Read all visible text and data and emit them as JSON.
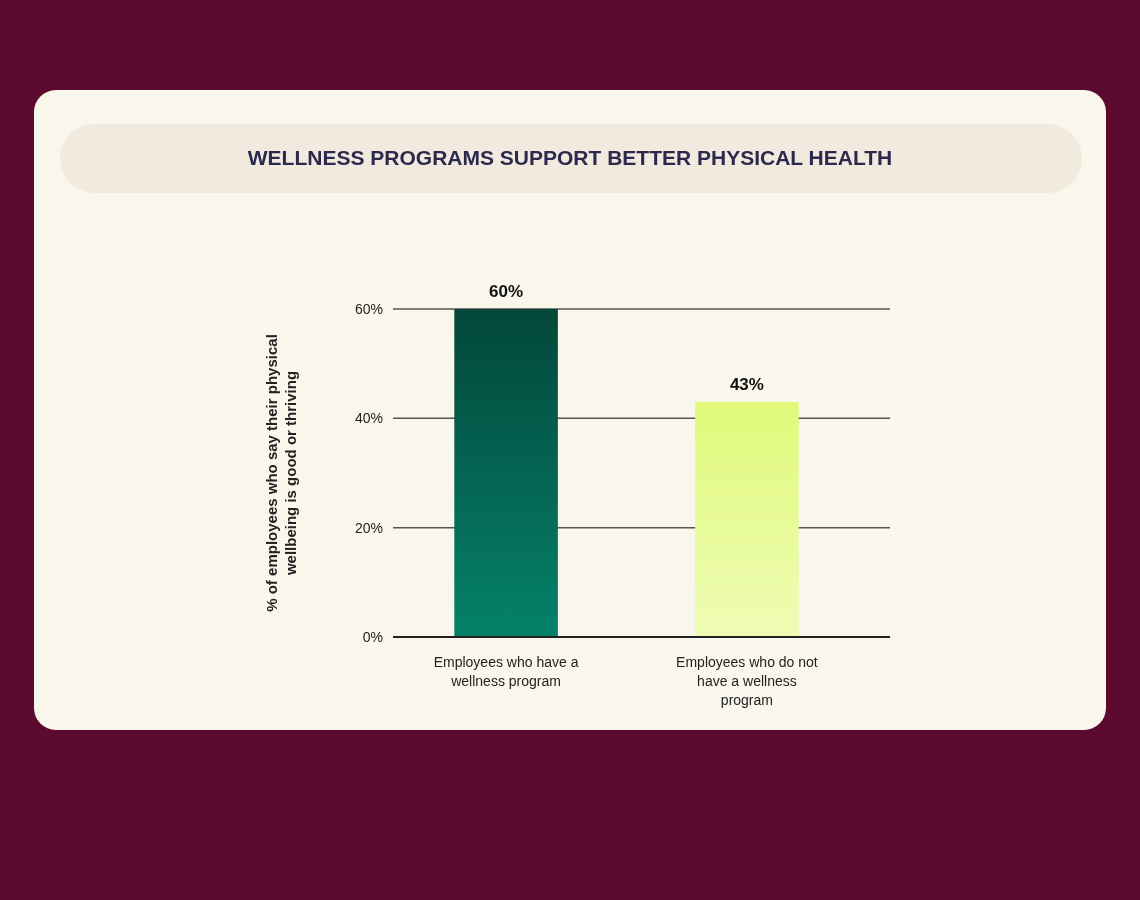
{
  "chart_data": {
    "type": "bar",
    "title": "WELLNESS PROGRAMS SUPPORT BETTER PHYSICAL HEALTH",
    "ylabel": "% of employees who say their physical wellbeing is good or thriving",
    "categories": [
      "Employees who have a wellness program",
      "Employees who do not have a wellness program"
    ],
    "values": [
      60,
      43
    ],
    "colors": [
      "#03473a",
      "#e1f97a"
    ],
    "value_labels": [
      "60%",
      "43%"
    ],
    "ylim": [
      0,
      60
    ],
    "yticks": [
      {
        "value": 0,
        "label": "0%"
      },
      {
        "value": 20,
        "label": "20%"
      },
      {
        "value": 40,
        "label": "40%"
      },
      {
        "value": 60,
        "label": "60%"
      }
    ],
    "grid": "y"
  }
}
